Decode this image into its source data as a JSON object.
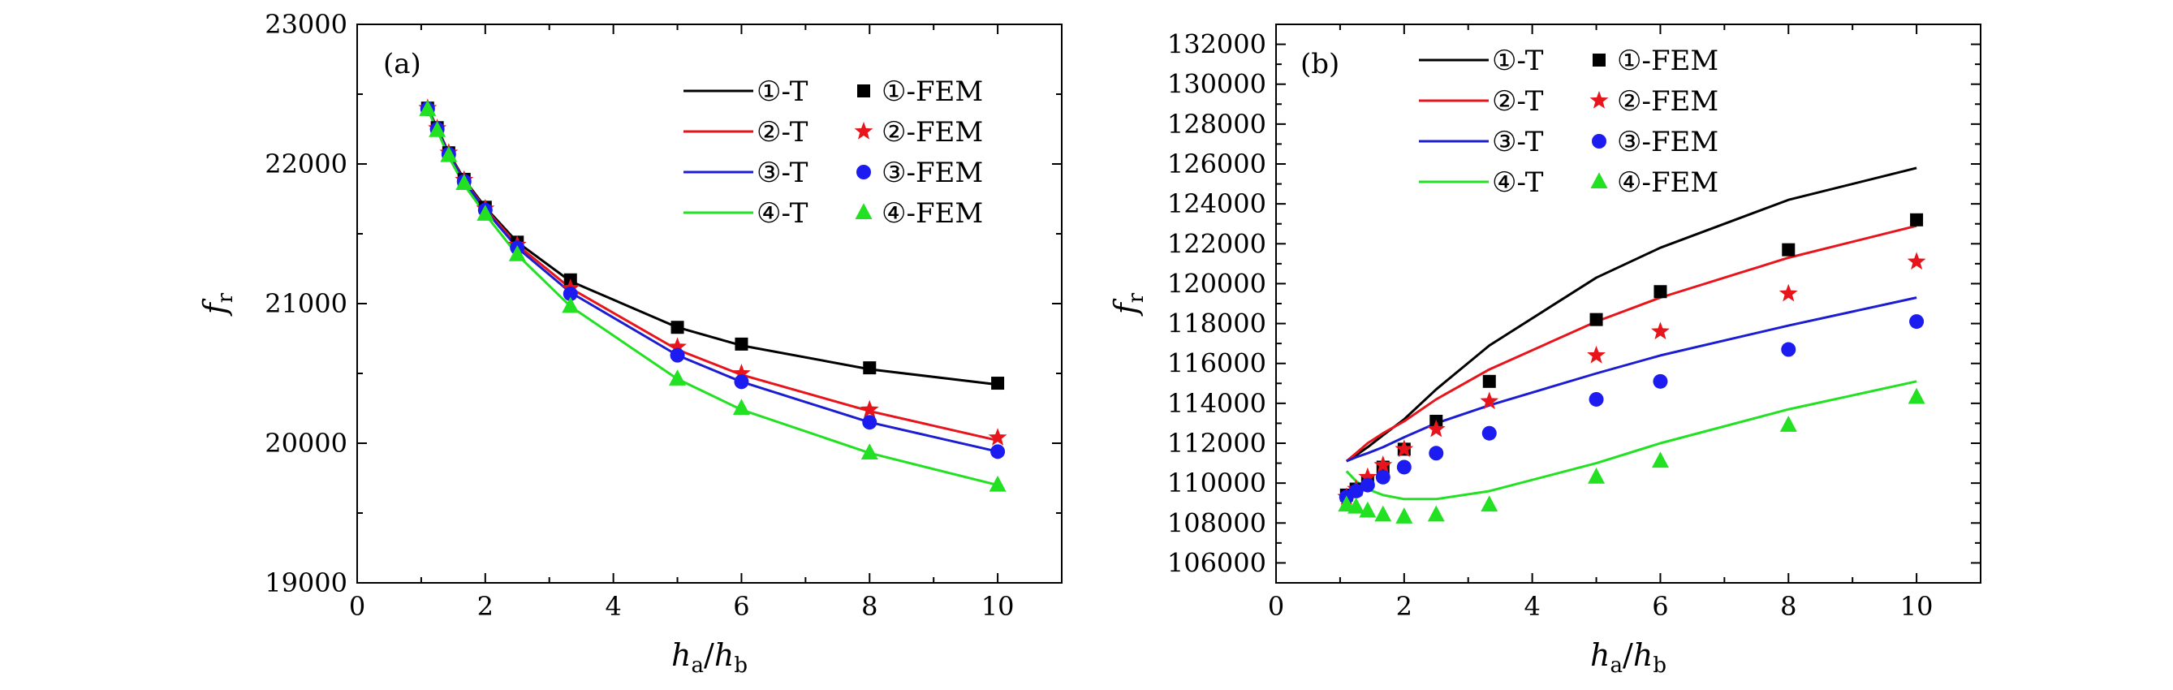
{
  "chart_data": [
    {
      "type": "line",
      "panel_label": "(a)",
      "xlabel": {
        "main": "h",
        "sub": "a",
        "sep": "/",
        "main2": "h",
        "sub2": "b"
      },
      "ylabel": {
        "main": "f",
        "sub": "r"
      },
      "xlim": [
        0,
        11
      ],
      "ylim": [
        19000,
        23000
      ],
      "xticks": [
        0,
        2,
        4,
        6,
        8,
        10
      ],
      "yticks": [
        19000,
        20000,
        21000,
        22000,
        23000
      ],
      "grid": false,
      "legend": {
        "placement": "top-right"
      },
      "series": [
        {
          "name": "①-T",
          "kind": "line",
          "color": "#000000",
          "x": [
            1.1,
            1.25,
            1.43,
            1.67,
            2,
            2.5,
            3.33,
            5,
            6,
            8,
            10
          ],
          "y": [
            22400,
            22260,
            22080,
            21890,
            21690,
            21440,
            21160,
            20830,
            20700,
            20530,
            20420
          ]
        },
        {
          "name": "①-FEM",
          "kind": "marker",
          "marker": "square",
          "color": "#000000",
          "x": [
            1.1,
            1.25,
            1.43,
            1.67,
            2,
            2.5,
            3.33,
            5,
            6,
            8,
            10
          ],
          "y": [
            22400,
            22260,
            22080,
            21890,
            21690,
            21440,
            21170,
            20830,
            20710,
            20540,
            20430
          ]
        },
        {
          "name": "②-T",
          "kind": "line",
          "color": "#e8141b",
          "x": [
            1.1,
            1.25,
            1.43,
            1.67,
            2,
            2.5,
            3.33,
            5,
            6,
            8,
            10
          ],
          "y": [
            22400,
            22255,
            22075,
            21880,
            21680,
            21420,
            21110,
            20670,
            20490,
            20230,
            20020
          ]
        },
        {
          "name": "②-FEM",
          "kind": "marker",
          "marker": "star",
          "color": "#e8141b",
          "x": [
            1.1,
            1.25,
            1.43,
            1.67,
            2,
            2.5,
            3.33,
            5,
            6,
            8,
            10
          ],
          "y": [
            22400,
            22255,
            22080,
            21885,
            21680,
            21420,
            21110,
            20690,
            20500,
            20240,
            20040
          ]
        },
        {
          "name": "③-T",
          "kind": "line",
          "color": "#1c1cd0",
          "x": [
            1.1,
            1.25,
            1.43,
            1.67,
            2,
            2.5,
            3.33,
            5,
            6,
            8,
            10
          ],
          "y": [
            22395,
            22250,
            22070,
            21875,
            21670,
            21400,
            21080,
            20630,
            20440,
            20150,
            19940
          ]
        },
        {
          "name": "③-FEM",
          "kind": "marker",
          "marker": "circle",
          "color": "#1c1cf0",
          "x": [
            1.1,
            1.25,
            1.43,
            1.67,
            2,
            2.5,
            3.33,
            5,
            6,
            8,
            10
          ],
          "y": [
            22395,
            22250,
            22070,
            21875,
            21670,
            21400,
            21070,
            20630,
            20440,
            20150,
            19940
          ]
        },
        {
          "name": "④-T",
          "kind": "line",
          "color": "#22e022",
          "x": [
            1.1,
            1.25,
            1.43,
            1.67,
            2,
            2.5,
            3.33,
            5,
            6,
            8,
            10
          ],
          "y": [
            22390,
            22240,
            22050,
            21850,
            21640,
            21350,
            20980,
            20460,
            20240,
            19930,
            19700
          ]
        },
        {
          "name": "④-FEM",
          "kind": "marker",
          "marker": "triangle",
          "color": "#22e022",
          "x": [
            1.1,
            1.25,
            1.43,
            1.67,
            2,
            2.5,
            3.33,
            5,
            6,
            8,
            10
          ],
          "y": [
            22390,
            22240,
            22060,
            21860,
            21640,
            21350,
            20980,
            20460,
            20250,
            19930,
            19700
          ]
        }
      ]
    },
    {
      "type": "line",
      "panel_label": "(b)",
      "xlabel": {
        "main": "h",
        "sub": "a",
        "sep": "/",
        "main2": "h",
        "sub2": "b"
      },
      "ylabel": {
        "main": "f",
        "sub": "r"
      },
      "xlim": [
        0,
        11
      ],
      "ylim": [
        105000,
        133000
      ],
      "xticks": [
        0,
        2,
        4,
        6,
        8,
        10
      ],
      "yticks": [
        106000,
        108000,
        110000,
        112000,
        114000,
        116000,
        118000,
        120000,
        122000,
        124000,
        126000,
        128000,
        130000,
        132000
      ],
      "grid": false,
      "legend": {
        "placement": "top-left"
      },
      "series": [
        {
          "name": "①-T",
          "kind": "line",
          "color": "#000000",
          "x": [
            1.1,
            1.25,
            1.43,
            1.67,
            2,
            2.5,
            3.33,
            5,
            6,
            8,
            10
          ],
          "y": [
            111100,
            111400,
            111800,
            112400,
            113200,
            114700,
            116900,
            120300,
            121800,
            124200,
            125800
          ]
        },
        {
          "name": "①-FEM",
          "kind": "marker",
          "marker": "square",
          "color": "#000000",
          "x": [
            1.1,
            1.25,
            1.43,
            1.67,
            2,
            2.5,
            3.33,
            5,
            6,
            8,
            10
          ],
          "y": [
            109400,
            109700,
            110100,
            110800,
            111700,
            113100,
            115100,
            118200,
            119600,
            121700,
            123200
          ]
        },
        {
          "name": "②-T",
          "kind": "line",
          "color": "#e8141b",
          "x": [
            1.1,
            1.25,
            1.43,
            1.67,
            2,
            2.5,
            3.33,
            5,
            6,
            8,
            10
          ],
          "y": [
            111100,
            111500,
            112000,
            112500,
            113100,
            114200,
            115700,
            118100,
            119300,
            121300,
            122900
          ]
        },
        {
          "name": "②-FEM",
          "kind": "marker",
          "marker": "star",
          "color": "#e8141b",
          "x": [
            1.1,
            1.25,
            1.43,
            1.67,
            2,
            2.5,
            3.33,
            5,
            6,
            8,
            10
          ],
          "y": [
            109300,
            109700,
            110300,
            110900,
            111700,
            112700,
            114100,
            116400,
            117600,
            119500,
            121100
          ]
        },
        {
          "name": "③-T",
          "kind": "line",
          "color": "#1c1cd0",
          "x": [
            1.1,
            1.25,
            1.43,
            1.67,
            2,
            2.5,
            3.33,
            5,
            6,
            8,
            10
          ],
          "y": [
            111100,
            111300,
            111500,
            111800,
            112300,
            113000,
            113900,
            115500,
            116400,
            117900,
            119300
          ]
        },
        {
          "name": "③-FEM",
          "kind": "marker",
          "marker": "circle",
          "color": "#1c1cf0",
          "x": [
            1.1,
            1.25,
            1.43,
            1.67,
            2,
            2.5,
            3.33,
            5,
            6,
            8,
            10
          ],
          "y": [
            109300,
            109600,
            109900,
            110300,
            110800,
            111500,
            112500,
            114200,
            115100,
            116700,
            118100
          ]
        },
        {
          "name": "④-T",
          "kind": "line",
          "color": "#22e022",
          "x": [
            1.1,
            1.25,
            1.43,
            1.67,
            2,
            2.5,
            3.33,
            5,
            6,
            8,
            10
          ],
          "y": [
            110600,
            110100,
            109700,
            109400,
            109200,
            109200,
            109600,
            111000,
            112000,
            113700,
            115100
          ]
        },
        {
          "name": "④-FEM",
          "kind": "marker",
          "marker": "triangle",
          "color": "#22e022",
          "x": [
            1.1,
            1.25,
            1.43,
            1.67,
            2,
            2.5,
            3.33,
            5,
            6,
            8,
            10
          ],
          "y": [
            108900,
            108800,
            108600,
            108400,
            108300,
            108400,
            108900,
            110300,
            111100,
            112900,
            114300
          ]
        }
      ]
    }
  ]
}
